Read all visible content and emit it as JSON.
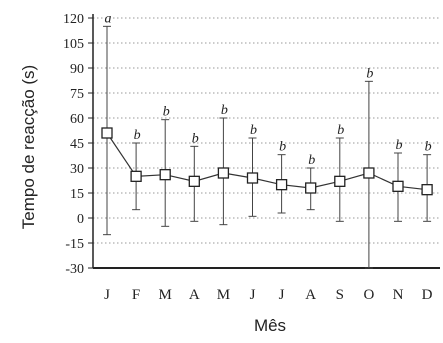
{
  "chart_data": {
    "type": "line",
    "title": "",
    "xlabel": "Mês",
    "ylabel": "Tempo de reacção (s)",
    "ylim": [
      -30,
      120
    ],
    "yticks": [
      -30,
      -15,
      0,
      15,
      30,
      45,
      60,
      75,
      90,
      105,
      120
    ],
    "ytick_labels": [
      "-30",
      "-15",
      "0",
      "15",
      "30",
      "45",
      "60",
      "75",
      "90",
      "105",
      "120"
    ],
    "grid": true,
    "categories": [
      "J",
      "F",
      "M",
      "A",
      "M",
      "J",
      "J",
      "A",
      "S",
      "O",
      "N",
      "D"
    ],
    "series": [
      {
        "mean": [
          51,
          25,
          26,
          22,
          27,
          24,
          20,
          18,
          22,
          27,
          19,
          17
        ],
        "error_low": [
          -10,
          5,
          -5,
          -2,
          -4,
          1,
          3,
          5,
          -2,
          -30,
          -2,
          -2
        ],
        "error_high": [
          115,
          45,
          59,
          43,
          60,
          48,
          38,
          30,
          48,
          82,
          39,
          38
        ]
      }
    ],
    "group_labels": [
      "a",
      "b",
      "b",
      "b",
      "b",
      "b",
      "b",
      "b",
      "b",
      "b",
      "b",
      "b"
    ]
  }
}
